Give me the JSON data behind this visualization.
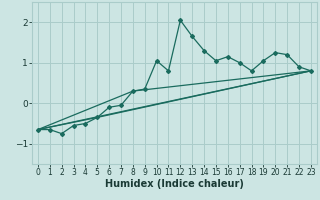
{
  "xlabel": "Humidex (Indice chaleur)",
  "ylabel": "",
  "xlim": [
    -0.5,
    23.5
  ],
  "ylim": [
    -1.5,
    2.5
  ],
  "yticks": [
    -1,
    0,
    1,
    2
  ],
  "xticks": [
    0,
    1,
    2,
    3,
    4,
    5,
    6,
    7,
    8,
    9,
    10,
    11,
    12,
    13,
    14,
    15,
    16,
    17,
    18,
    19,
    20,
    21,
    22,
    23
  ],
  "bg_color": "#cce5e3",
  "grid_color": "#aaccca",
  "line_color": "#1a6b5e",
  "main_x": [
    0,
    1,
    2,
    3,
    4,
    5,
    6,
    7,
    8,
    9,
    10,
    11,
    12,
    13,
    14,
    15,
    16,
    17,
    18,
    19,
    20,
    21,
    22,
    23
  ],
  "main_y": [
    -0.65,
    -0.65,
    -0.75,
    -0.55,
    -0.5,
    -0.35,
    -0.1,
    -0.05,
    0.3,
    0.35,
    1.05,
    0.8,
    2.05,
    1.65,
    1.3,
    1.05,
    1.15,
    1.0,
    0.8,
    1.05,
    1.25,
    1.2,
    0.9,
    0.8
  ],
  "line2_x": [
    0,
    23
  ],
  "line2_y": [
    -0.65,
    0.8
  ],
  "line3_x": [
    0,
    5,
    23
  ],
  "line3_y": [
    -0.65,
    -0.35,
    0.8
  ],
  "line4_x": [
    0,
    8,
    23
  ],
  "line4_y": [
    -0.65,
    0.3,
    0.8
  ]
}
